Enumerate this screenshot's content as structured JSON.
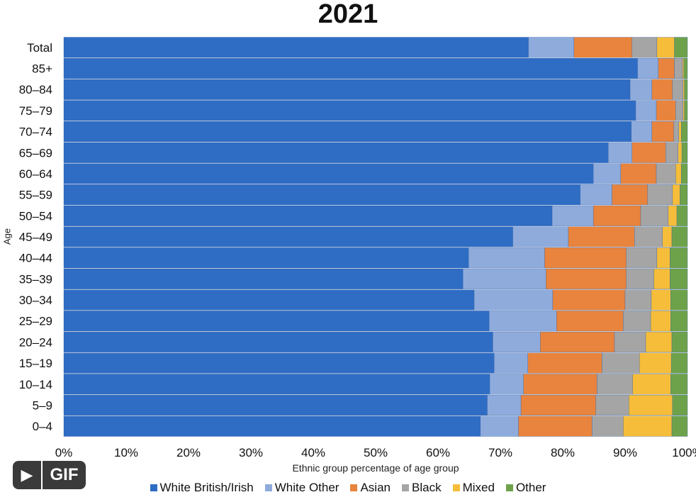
{
  "ui": {
    "gif_label": "GIF",
    "play_glyph": "▶"
  },
  "chart_data": {
    "type": "bar",
    "orientation": "horizontal",
    "stacked": true,
    "title": "2021",
    "xlabel": "Ethnic group percentage of age group",
    "ylabel": "Age",
    "xlim": [
      0,
      100
    ],
    "x_ticks": [
      "0%",
      "10%",
      "20%",
      "30%",
      "40%",
      "50%",
      "60%",
      "70%",
      "80%",
      "90%",
      "100%"
    ],
    "legend_position": "bottom",
    "grid": false,
    "categories": [
      "Total",
      "85+",
      "80–84",
      "75–79",
      "70–74",
      "65–69",
      "60–64",
      "55–59",
      "50–54",
      "45–49",
      "40–44",
      "35–39",
      "30–34",
      "25–29",
      "20–24",
      "15–19",
      "10–14",
      "5–9",
      "0–4"
    ],
    "series": [
      {
        "name": "White British/Irish",
        "color": "#2f6dc4",
        "values": [
          74.5,
          92.0,
          90.8,
          91.7,
          91.0,
          87.3,
          84.9,
          82.8,
          78.3,
          72.0,
          64.9,
          64.0,
          65.8,
          68.2,
          68.8,
          69.0,
          68.3,
          67.9,
          66.8
        ]
      },
      {
        "name": "White Other",
        "color": "#8eabdc",
        "values": [
          7.3,
          3.3,
          3.5,
          3.3,
          3.3,
          3.8,
          4.4,
          5.1,
          6.6,
          8.9,
          12.2,
          13.3,
          12.6,
          10.8,
          7.6,
          5.4,
          5.4,
          5.4,
          6.1
        ]
      },
      {
        "name": "Asian",
        "color": "#e8843d",
        "values": [
          9.3,
          2.6,
          3.3,
          3.1,
          3.5,
          5.4,
          5.7,
          5.7,
          7.6,
          10.6,
          13.1,
          12.9,
          11.6,
          10.7,
          11.9,
          11.9,
          11.8,
          12.0,
          11.8
        ]
      },
      {
        "name": "Black",
        "color": "#a5a5a5",
        "values": [
          4.0,
          1.3,
          1.7,
          1.2,
          0.8,
          2.0,
          3.1,
          4.0,
          4.4,
          4.5,
          4.9,
          4.4,
          4.2,
          4.4,
          5.0,
          6.0,
          5.7,
          5.3,
          5.0
        ]
      },
      {
        "name": "Mixed",
        "color": "#f5bd3a",
        "values": [
          2.8,
          0.2,
          0.2,
          0.2,
          0.4,
          0.6,
          0.9,
          1.2,
          1.4,
          1.5,
          2.1,
          2.6,
          3.1,
          3.2,
          4.2,
          5.1,
          6.1,
          7.0,
          7.8
        ]
      },
      {
        "name": "Other",
        "color": "#6ea24a",
        "values": [
          2.1,
          0.6,
          0.5,
          0.5,
          1.0,
          0.9,
          1.0,
          1.2,
          1.7,
          2.5,
          2.8,
          2.8,
          2.7,
          2.7,
          2.5,
          2.6,
          2.7,
          2.4,
          2.5
        ]
      }
    ]
  }
}
